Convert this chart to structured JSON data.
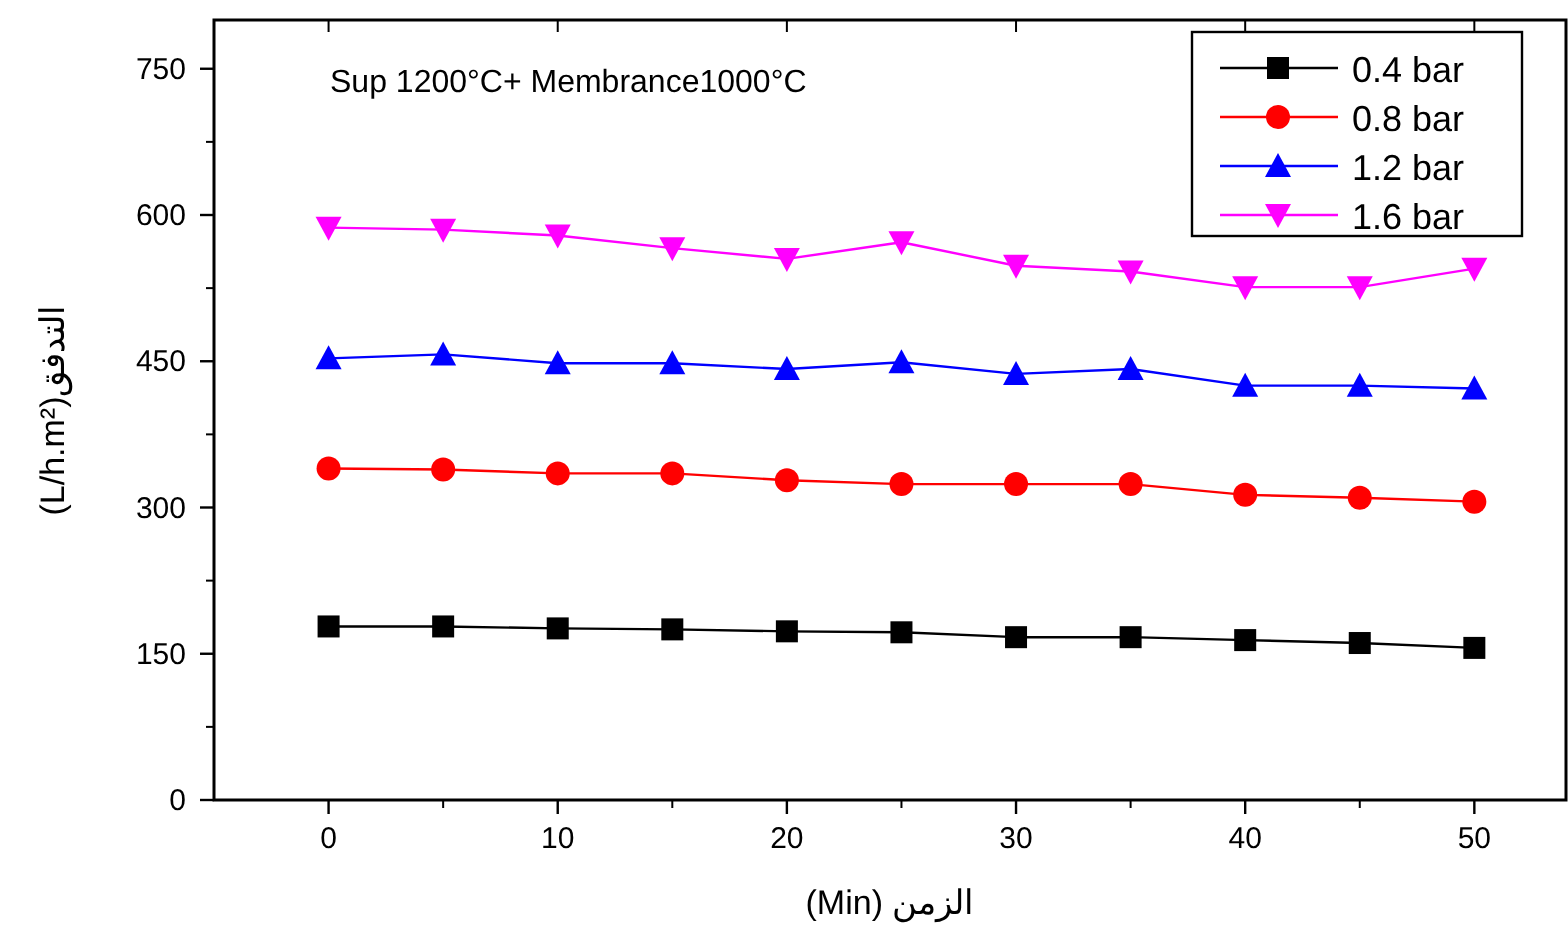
{
  "chart_data": {
    "type": "line",
    "title": "Sup 1200°C+ Membrance1000°C",
    "xlabel": "(Min) الزمن",
    "ylabel": "(L/h.m²)التدفق",
    "x": [
      0,
      5,
      10,
      15,
      20,
      25,
      30,
      35,
      40,
      45,
      50
    ],
    "xlim": [
      -5,
      54
    ],
    "xticks": [
      0,
      10,
      20,
      30,
      40,
      50
    ],
    "ylim": [
      0,
      800
    ],
    "yticks": [
      0,
      150,
      300,
      450,
      600,
      750
    ],
    "grid": false,
    "legend": "top right",
    "line_style": "solid",
    "series": [
      {
        "name": "0.4 bar",
        "color": "#000000",
        "marker": "square",
        "values": [
          178,
          178,
          176,
          175,
          173,
          172,
          167,
          167,
          164,
          161,
          156
        ]
      },
      {
        "name": "0.8 bar",
        "color": "#ff0000",
        "marker": "circle",
        "values": [
          340,
          339,
          335,
          335,
          328,
          324,
          324,
          324,
          313,
          310,
          306
        ]
      },
      {
        "name": "1.2 bar",
        "color": "#0000ff",
        "marker": "triangle",
        "values": [
          453,
          457,
          448,
          448,
          442,
          449,
          437,
          442,
          425,
          425,
          422
        ]
      },
      {
        "name": "1.6 bar",
        "color": "#ff00ff",
        "marker": "triangle-down",
        "values": [
          587,
          585,
          579,
          566,
          555,
          572,
          548,
          542,
          526,
          526,
          545
        ]
      }
    ]
  }
}
